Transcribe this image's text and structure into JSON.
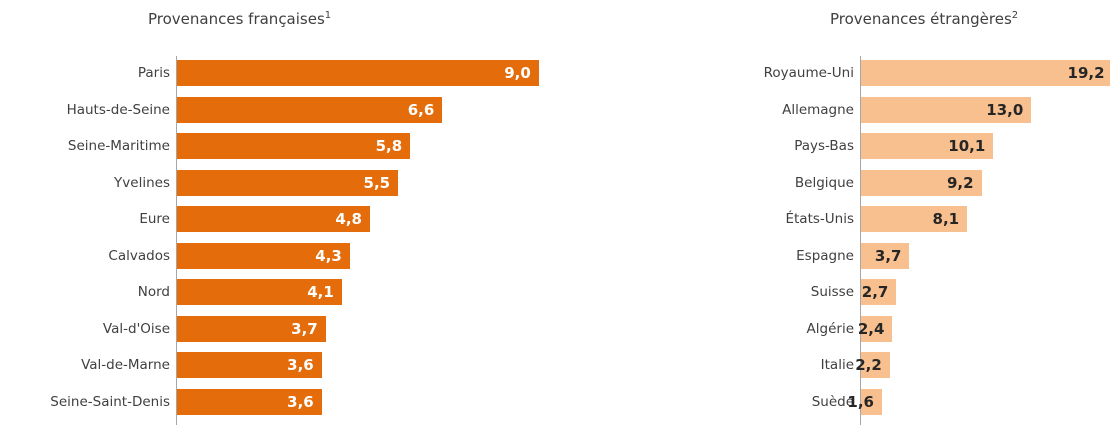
{
  "chart_data": [
    {
      "type": "bar",
      "orientation": "horizontal",
      "title": "Provenances françaises",
      "title_note": "1",
      "bar_color": "#E46C0A",
      "label_color": "#ffffff",
      "categories": [
        "Paris",
        "Hauts-de-Seine",
        "Seine-Maritime",
        "Yvelines",
        "Eure",
        "Calvados",
        "Nord",
        "Val-d'Oise",
        "Val-de-Marne",
        "Seine-Saint-Denis"
      ],
      "values": [
        9.0,
        6.6,
        5.8,
        5.5,
        4.8,
        4.3,
        4.1,
        3.7,
        3.6,
        3.6
      ],
      "value_labels": [
        "9,0",
        "6,6",
        "5,8",
        "5,5",
        "4,8",
        "4,3",
        "4,1",
        "3,7",
        "3,6",
        "3,6"
      ]
    },
    {
      "type": "bar",
      "orientation": "horizontal",
      "title": "Provenances étrangères",
      "title_note": "2",
      "bar_color": "#F9C08F",
      "label_color": "#262626",
      "categories": [
        "Royaume-Uni",
        "Allemagne",
        "Pays-Bas",
        "Belgique",
        "États-Unis",
        "Espagne",
        "Suisse",
        "Algérie",
        "Italie",
        "Suède"
      ],
      "values": [
        19.2,
        13.0,
        10.1,
        9.2,
        8.1,
        3.7,
        2.7,
        2.4,
        2.2,
        1.6
      ],
      "value_labels": [
        "19,2",
        "13,0",
        "10,1",
        "9,2",
        "8,1",
        "3,7",
        "2,7",
        "2,4",
        "2,2",
        "1,6"
      ]
    }
  ]
}
